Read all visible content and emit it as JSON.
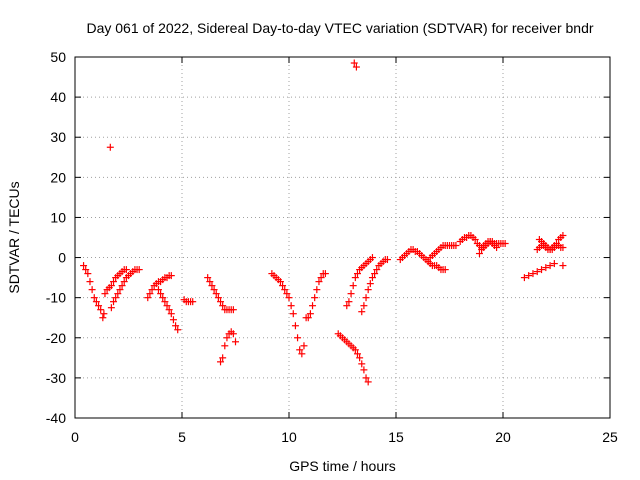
{
  "chart_data": {
    "type": "scatter",
    "title": "Day 061 of 2022, Sidereal Day-to-day VTEC variation (SDTVAR) for receiver bndr",
    "xlabel": "GPS time / hours",
    "ylabel": "SDTVAR / TECUs",
    "xlim": [
      0,
      25
    ],
    "ylim": [
      -40,
      50
    ],
    "x_ticks": [
      0,
      5,
      10,
      15,
      20,
      25
    ],
    "y_ticks": [
      -40,
      -30,
      -20,
      -10,
      0,
      10,
      20,
      30,
      40,
      50
    ],
    "grid": true,
    "marker": "plus",
    "color": "#ff0000",
    "series": [
      {
        "x": [
          0.4,
          0.5,
          0.6,
          0.7,
          0.8,
          0.9,
          1.0,
          1.1,
          1.2,
          1.3,
          1.35,
          1.4,
          1.5,
          1.6,
          1.7,
          1.8,
          1.9,
          2.0,
          2.1,
          2.2,
          2.3,
          2.4,
          1.7,
          1.8,
          1.9,
          2.0,
          2.1,
          2.2,
          2.3,
          2.4,
          2.5,
          2.6,
          2.7,
          2.8,
          2.9,
          3.0,
          1.65,
          3.4,
          3.5,
          3.6,
          3.7,
          3.8,
          3.9,
          4.0,
          4.1,
          4.2,
          4.3,
          4.4,
          4.5,
          3.9,
          4.0,
          4.1,
          4.2,
          4.3,
          4.4,
          4.5,
          4.6,
          4.7,
          4.8,
          5.1,
          5.2,
          5.3,
          5.4,
          5.5,
          6.2,
          6.3,
          6.4,
          6.5,
          6.6,
          6.7,
          6.8,
          6.9,
          7.0,
          7.1,
          7.2,
          7.3,
          7.4,
          6.8,
          6.9,
          7.0,
          7.1,
          7.2,
          7.3,
          7.4,
          7.5,
          9.2,
          9.3,
          9.4,
          9.5,
          9.6,
          9.7,
          9.8,
          9.9,
          10.0,
          10.1,
          10.2,
          10.3,
          10.4,
          10.5,
          10.6,
          10.7,
          10.8,
          10.9,
          11.0,
          11.1,
          11.2,
          11.3,
          11.4,
          11.5,
          11.6,
          11.7,
          12.3,
          12.4,
          12.5,
          12.6,
          12.7,
          12.8,
          12.9,
          13.0,
          13.1,
          13.2,
          13.3,
          13.4,
          13.5,
          13.6,
          13.7,
          12.7,
          12.8,
          12.9,
          13.0,
          13.1,
          13.2,
          13.3,
          13.4,
          13.5,
          13.6,
          13.7,
          13.8,
          13.9,
          13.4,
          13.5,
          13.6,
          13.7,
          13.8,
          13.9,
          14.0,
          14.1,
          14.2,
          14.3,
          14.4,
          14.5,
          14.6,
          13.05,
          13.15,
          15.2,
          15.3,
          15.4,
          15.5,
          15.6,
          15.7,
          15.8,
          15.9,
          16.0,
          16.1,
          16.2,
          16.3,
          16.4,
          16.5,
          16.6,
          16.7,
          16.8,
          16.9,
          17.0,
          17.1,
          17.2,
          17.3,
          16.5,
          16.6,
          16.7,
          16.8,
          16.9,
          17.0,
          17.1,
          17.2,
          17.3,
          17.4,
          17.5,
          17.6,
          17.7,
          17.8,
          18.0,
          18.1,
          18.2,
          18.3,
          18.4,
          18.5,
          18.6,
          18.7,
          18.8,
          18.9,
          19.0,
          19.1,
          19.2,
          19.3,
          19.4,
          19.5,
          19.6,
          19.7,
          19.8,
          19.9,
          20.0,
          20.1,
          18.9,
          19.0,
          19.1,
          19.2,
          19.3,
          19.4,
          19.5,
          19.6,
          19.7,
          21.0,
          21.2,
          21.4,
          21.6,
          21.8,
          22.0,
          22.2,
          22.4,
          21.6,
          21.7,
          21.8,
          21.9,
          22.0,
          22.1,
          22.2,
          22.3,
          22.4,
          22.5,
          22.6,
          22.7,
          22.8,
          21.7,
          21.8,
          21.9,
          22.0,
          22.1,
          22.2,
          22.3,
          22.4,
          22.5,
          22.6,
          22.7,
          22.8,
          22.8
        ],
        "y": [
          -2,
          -3,
          -4,
          -6,
          -8,
          -10,
          -11,
          -12,
          -13,
          -15,
          -14,
          -9,
          -8,
          -7.5,
          -7,
          -6,
          -5,
          -4.5,
          -4,
          -3.5,
          -3,
          -3,
          -12.5,
          -11,
          -10,
          -9,
          -8,
          -7,
          -6,
          -5,
          -4.5,
          -4,
          -3.5,
          -3,
          -3,
          -3,
          27.5,
          -10,
          -9,
          -8,
          -7,
          -6.5,
          -6,
          -6,
          -5.5,
          -5,
          -5,
          -4.5,
          -4.5,
          -8,
          -9,
          -10,
          -11,
          -12,
          -13,
          -14,
          -15.5,
          -17,
          -18,
          -10.5,
          -11,
          -11,
          -11,
          -11,
          -5,
          -6,
          -7,
          -8,
          -9,
          -10,
          -11,
          -12,
          -13,
          -13,
          -13,
          -13,
          -13,
          -26,
          -25,
          -22,
          -20,
          -19,
          -18.5,
          -19,
          -21,
          -4,
          -4.5,
          -5,
          -5.5,
          -6,
          -7,
          -8,
          -9,
          -10,
          -12,
          -14,
          -17,
          -20,
          -23,
          -24,
          -22,
          -15,
          -15,
          -14,
          -12,
          -10,
          -8,
          -6,
          -5,
          -4,
          -4,
          -19,
          -19.5,
          -20,
          -20.5,
          -21,
          -21.5,
          -22,
          -22.5,
          -23,
          -24,
          -25,
          -26.5,
          -28,
          -30,
          -31,
          -12,
          -11,
          -9,
          -7,
          -5,
          -4,
          -3,
          -2.5,
          -2,
          -1.5,
          -1,
          -0.5,
          0,
          -13.5,
          -12,
          -10,
          -8,
          -6.5,
          -5,
          -4,
          -3,
          -2,
          -1.5,
          -1,
          -0.5,
          -0.5,
          48.5,
          47.5,
          -0.5,
          0,
          0.5,
          1,
          1.5,
          2,
          2,
          1.5,
          1.5,
          1,
          0.5,
          0,
          -0.5,
          -1,
          -1.5,
          -2,
          -2,
          -2,
          -2.5,
          -3,
          -3,
          -3,
          -1,
          0,
          0.5,
          1,
          1.5,
          2,
          2.5,
          3,
          3,
          3,
          3,
          3,
          3,
          3,
          4,
          4.5,
          5,
          5,
          5.5,
          5.5,
          5,
          4.5,
          3.5,
          3,
          2.5,
          3,
          3.5,
          4,
          4,
          4,
          3.5,
          3.5,
          3.5,
          3.5,
          3.5,
          3.5,
          1,
          2,
          2.5,
          3,
          3.5,
          4,
          3.5,
          3,
          2.5,
          -5,
          -4.5,
          -4,
          -3.5,
          -3,
          -2.5,
          -2,
          -1.5,
          2,
          2.5,
          3,
          3,
          2.5,
          2,
          2,
          2,
          2.5,
          3,
          3,
          2.5,
          2.5,
          4.5,
          4,
          3.5,
          3,
          2.5,
          2,
          2.5,
          3,
          3.5,
          4.5,
          5,
          5.5,
          -2
        ]
      }
    ]
  }
}
